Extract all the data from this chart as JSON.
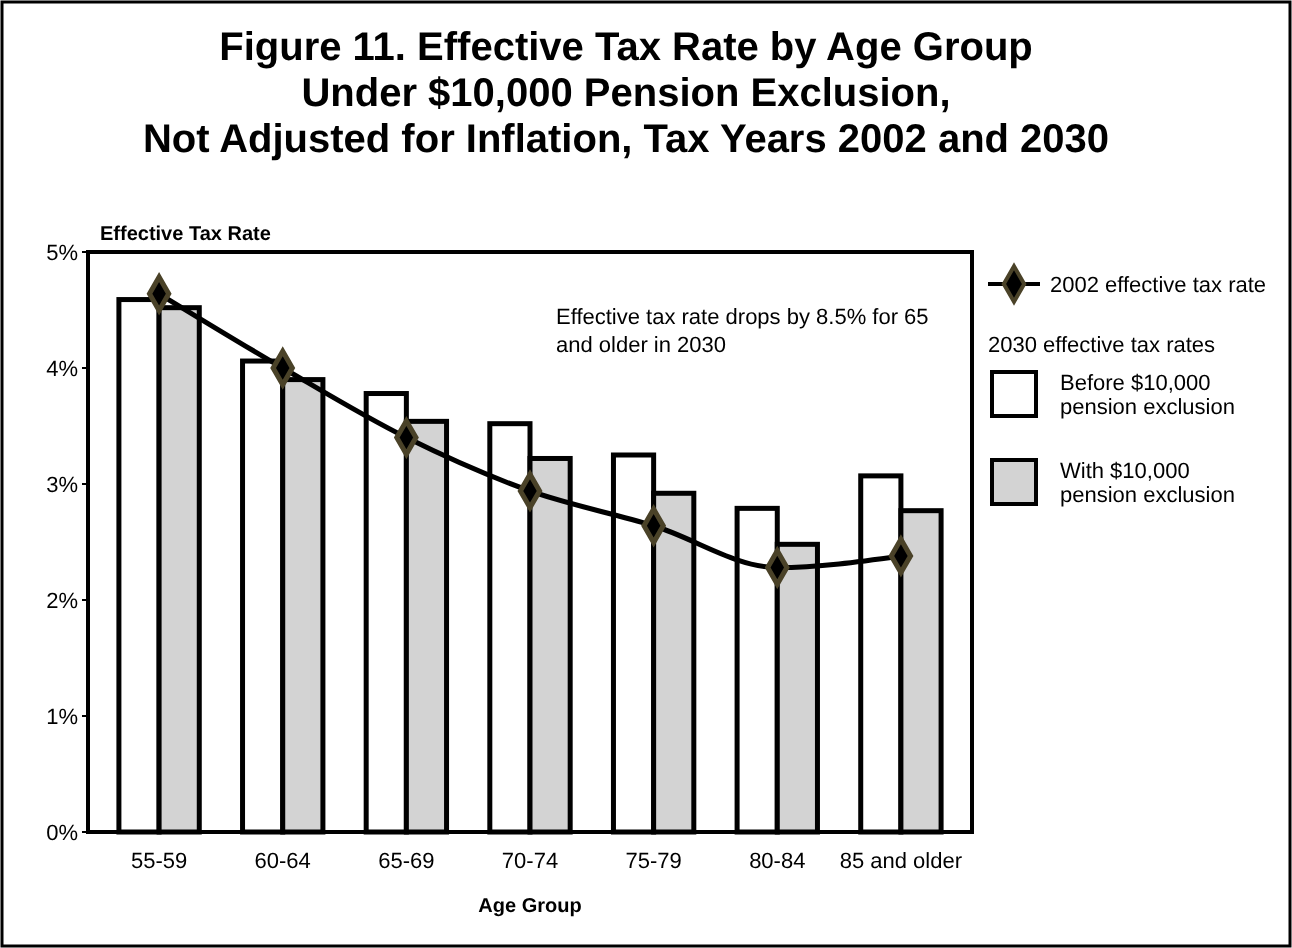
{
  "chart_data": {
    "type": "bar",
    "title": "Figure 11. Effective Tax Rate by Age Group\nUnder $10,000 Pension Exclusion,\nNot Adjusted for Inflation, Tax Years 2002 and 2030",
    "xlabel": "Age Group",
    "ylabel": "Effective Tax Rate",
    "legend_title": "2030 effective tax rates",
    "categories": [
      "55-59",
      "60-64",
      "65-69",
      "70-74",
      "75-79",
      "80-84",
      "85 and older"
    ],
    "series": [
      {
        "name": "Before $10,000 pension exclusion",
        "color": "#ffffff",
        "values": [
          4.59,
          4.06,
          3.78,
          3.52,
          3.25,
          2.79,
          3.07
        ]
      },
      {
        "name": "With $10,000 pension exclusion",
        "color": "#d3d3d3",
        "values": [
          4.52,
          3.9,
          3.54,
          3.22,
          2.92,
          2.48,
          2.77
        ]
      },
      {
        "name": "2002 effective tax rate",
        "type": "line",
        "color": "#000000",
        "marker": "diamond",
        "values": [
          4.64,
          4.0,
          3.4,
          2.94,
          2.64,
          2.28,
          2.38
        ]
      }
    ],
    "ylim": [
      0,
      5
    ],
    "yticks": [
      {
        "value": 0,
        "label": "0%"
      },
      {
        "value": 1,
        "label": "1%"
      },
      {
        "value": 2,
        "label": "2%"
      },
      {
        "value": 3,
        "label": "3%"
      },
      {
        "value": 4,
        "label": "4%"
      },
      {
        "value": 5,
        "label": "5%"
      }
    ],
    "grid": false,
    "legend": "right",
    "annotations": [
      "Effective tax rate drops by 8.5% for 65\nand older in 2030"
    ]
  }
}
